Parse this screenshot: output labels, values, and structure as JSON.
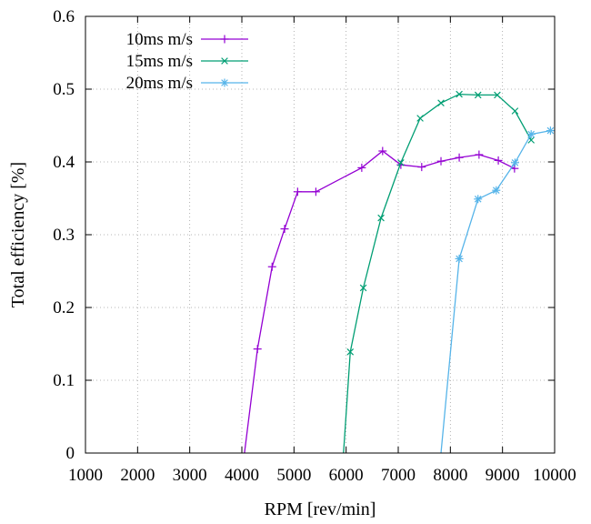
{
  "chart_data": {
    "type": "line",
    "title": "",
    "xlabel": "RPM [rev/min]",
    "ylabel": "Total efficiency [%]",
    "xlim": [
      1000,
      10000
    ],
    "ylim": [
      0,
      0.6
    ],
    "xticks": [
      1000,
      2000,
      3000,
      4000,
      5000,
      6000,
      7000,
      8000,
      9000,
      10000
    ],
    "xtick_labels": [
      "1000",
      "2000",
      "3000",
      "4000",
      "5000",
      "6000",
      "7000",
      "8000",
      "9000",
      "10000"
    ],
    "yticks": [
      0,
      0.1,
      0.2,
      0.3,
      0.4,
      0.5,
      0.6
    ],
    "ytick_labels": [
      "0",
      "0.1",
      "0.2",
      "0.3",
      "0.4",
      "0.5",
      "0.6"
    ],
    "grid": true,
    "legend_position": "top-left",
    "series": [
      {
        "name": "10ms m/s",
        "color": "#9400d3",
        "marker": "plus",
        "x": [
          4050,
          4300,
          4580,
          4820,
          5070,
          5420,
          6300,
          6700,
          7050,
          7450,
          7820,
          8170,
          8550,
          8920,
          9230
        ],
        "y": [
          0.0,
          0.143,
          0.256,
          0.308,
          0.359,
          0.359,
          0.392,
          0.415,
          0.396,
          0.393,
          0.401,
          0.406,
          0.41,
          0.402,
          0.391
        ]
      },
      {
        "name": "15ms m/s",
        "color": "#009e73",
        "marker": "cross",
        "x": [
          5950,
          6080,
          6330,
          6670,
          7050,
          7420,
          7820,
          8170,
          8530,
          8900,
          9240,
          9550
        ],
        "y": [
          0.0,
          0.139,
          0.227,
          0.323,
          0.399,
          0.46,
          0.481,
          0.493,
          0.492,
          0.492,
          0.47,
          0.43
        ]
      },
      {
        "name": "20ms m/s",
        "color": "#56b4e9",
        "marker": "star",
        "x": [
          7820,
          8170,
          8530,
          8880,
          9240,
          9550,
          9920
        ],
        "y": [
          0.0,
          0.267,
          0.349,
          0.361,
          0.399,
          0.438,
          0.443
        ]
      }
    ]
  }
}
